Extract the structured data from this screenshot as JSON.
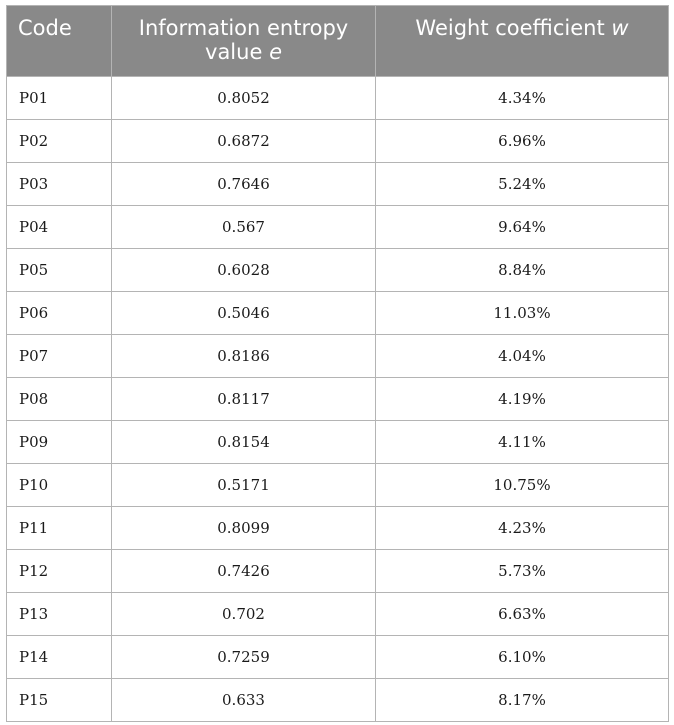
{
  "table": {
    "headers": {
      "code": "Code",
      "entropy_line1": "Information entropy",
      "entropy_line2_text": "value ",
      "entropy_symbol": "e",
      "weight_text": "Weight coefficient ",
      "weight_symbol": "w"
    },
    "rows": [
      {
        "code": "P01",
        "entropy": "0.8052",
        "weight": "4.34%"
      },
      {
        "code": "P02",
        "entropy": "0.6872",
        "weight": "6.96%"
      },
      {
        "code": "P03",
        "entropy": "0.7646",
        "weight": "5.24%"
      },
      {
        "code": "P04",
        "entropy": "0.567",
        "weight": "9.64%"
      },
      {
        "code": "P05",
        "entropy": "0.6028",
        "weight": "8.84%"
      },
      {
        "code": "P06",
        "entropy": "0.5046",
        "weight": "11.03%"
      },
      {
        "code": "P07",
        "entropy": "0.8186",
        "weight": "4.04%"
      },
      {
        "code": "P08",
        "entropy": "0.8117",
        "weight": "4.19%"
      },
      {
        "code": "P09",
        "entropy": "0.8154",
        "weight": "4.11%"
      },
      {
        "code": "P10",
        "entropy": "0.5171",
        "weight": "10.75%"
      },
      {
        "code": "P11",
        "entropy": "0.8099",
        "weight": "4.23%"
      },
      {
        "code": "P12",
        "entropy": "0.7426",
        "weight": "5.73%"
      },
      {
        "code": "P13",
        "entropy": "0.702",
        "weight": "6.63%"
      },
      {
        "code": "P14",
        "entropy": "0.7259",
        "weight": "6.10%"
      },
      {
        "code": "P15",
        "entropy": "0.633",
        "weight": "8.17%"
      }
    ]
  },
  "colors": {
    "header_bg": "#898989",
    "header_text": "#ffffff",
    "border": "#b4b4b4"
  }
}
